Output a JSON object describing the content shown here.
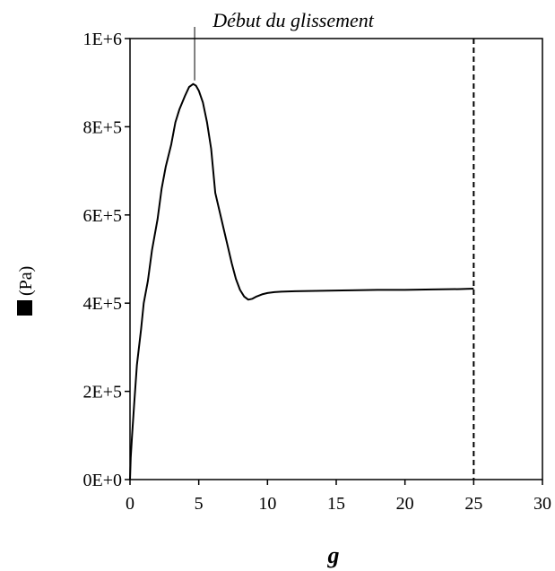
{
  "chart_data": {
    "type": "line",
    "title": "",
    "xlabel": "g",
    "ylabel_unit": "(Pa)",
    "xlim": [
      0,
      30
    ],
    "ylim": [
      0,
      1000000
    ],
    "x_ticks": [
      0,
      5,
      10,
      15,
      20,
      25,
      30
    ],
    "x_tick_labels": [
      "0",
      "5",
      "10",
      "15",
      "20",
      "25",
      "30"
    ],
    "y_ticks": [
      0,
      200000,
      400000,
      600000,
      800000,
      1000000
    ],
    "y_tick_labels": [
      "0E+0",
      "2E+5",
      "4E+5",
      "6E+5",
      "8E+5",
      "1E+6"
    ],
    "grid": false,
    "legend": "none",
    "line_color": "#000000",
    "series": [
      {
        "x": [
          0,
          0.05,
          0.15,
          0.3,
          0.5,
          0.8,
          1.0,
          1.3,
          1.6,
          2.0,
          2.3,
          2.6,
          3.0,
          3.3,
          3.6,
          4.0,
          4.3,
          4.6,
          4.8,
          5.0,
          5.3,
          5.6,
          5.9,
          6.2,
          6.5,
          6.8,
          7.1,
          7.4,
          7.7,
          8.0,
          8.3,
          8.6,
          8.9,
          9.2,
          9.6,
          10.0,
          10.5,
          11,
          12,
          14,
          16,
          18,
          20,
          22,
          24,
          25
        ],
        "y": [
          0,
          50000,
          100000,
          170000,
          260000,
          340000,
          400000,
          450000,
          520000,
          590000,
          660000,
          710000,
          760000,
          810000,
          840000,
          870000,
          890000,
          897000,
          893000,
          882000,
          855000,
          810000,
          750000,
          650000,
          610000,
          570000,
          530000,
          490000,
          455000,
          430000,
          415000,
          408000,
          410000,
          415000,
          420000,
          423000,
          425000,
          426000,
          427000,
          428000,
          429000,
          430000,
          430000,
          431000,
          432000,
          433000
        ]
      }
    ],
    "annotations": [
      {
        "text": "Début du glissement",
        "x": 4.7,
        "y": 905000
      }
    ],
    "reference_lines": [
      {
        "orientation": "vertical",
        "x": 25,
        "style": "dashed"
      }
    ]
  }
}
